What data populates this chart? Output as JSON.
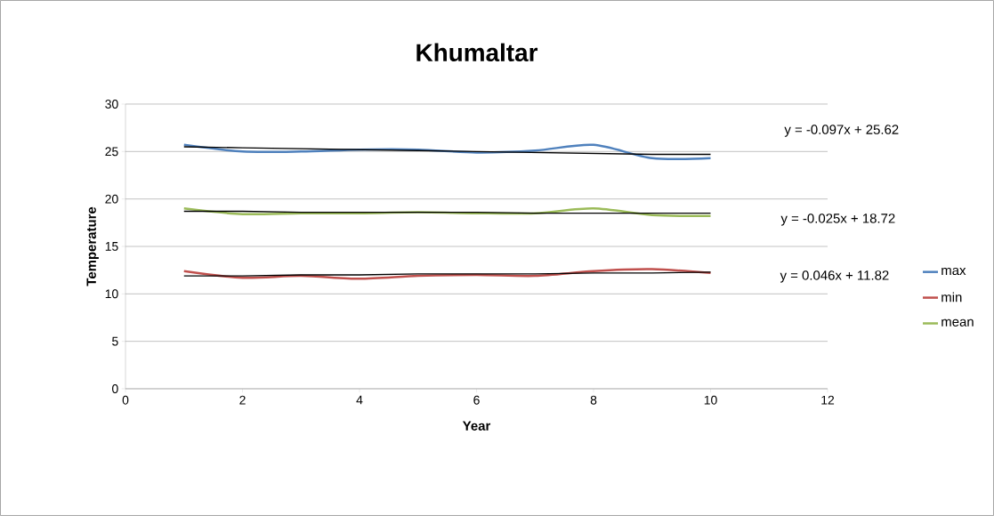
{
  "chart_data": {
    "type": "line",
    "title": "Khumaltar",
    "xlabel": "Year",
    "ylabel": "Temperature",
    "x": [
      1,
      2,
      3,
      4,
      5,
      6,
      7,
      8,
      9,
      10
    ],
    "series": [
      {
        "name": "max",
        "color": "#4f81bd",
        "values": [
          25.7,
          25.0,
          25.0,
          25.2,
          25.2,
          24.9,
          25.1,
          25.7,
          24.3,
          24.3
        ]
      },
      {
        "name": "min",
        "color": "#c0504d",
        "values": [
          12.4,
          11.7,
          11.9,
          11.6,
          11.9,
          12.0,
          11.9,
          12.4,
          12.6,
          12.2
        ]
      },
      {
        "name": "mean",
        "color": "#9bbb59",
        "values": [
          19.0,
          18.4,
          18.5,
          18.5,
          18.6,
          18.5,
          18.5,
          19.0,
          18.3,
          18.2
        ]
      },
      {
        "type": "line",
        "color": "#000000",
        "values": [
          25.5,
          25.4,
          25.3,
          25.2,
          25.1,
          25.0,
          24.9,
          24.8,
          24.7,
          24.7
        ]
      },
      {
        "type": "line",
        "color": "#000000",
        "values": [
          11.9,
          11.9,
          12.0,
          12.0,
          12.1,
          12.1,
          12.1,
          12.2,
          12.2,
          12.3
        ]
      },
      {
        "type": "line",
        "color": "#000000",
        "values": [
          18.7,
          18.7,
          18.6,
          18.6,
          18.6,
          18.6,
          18.5,
          18.5,
          18.5,
          18.5
        ]
      }
    ],
    "annotations": [
      "y = -0.097x + 25.62",
      "y = 0.046x + 11.82",
      "y = -0.025x + 18.72"
    ],
    "xlim": [
      0,
      12
    ],
    "xticks": [
      0,
      2,
      4,
      6,
      8,
      10,
      12
    ],
    "ylim": [
      0,
      30
    ],
    "yticks": [
      0,
      5,
      10,
      15,
      20,
      25,
      30
    ],
    "grid": "y",
    "legend": "right",
    "marker": "none",
    "line_style": "solid"
  }
}
